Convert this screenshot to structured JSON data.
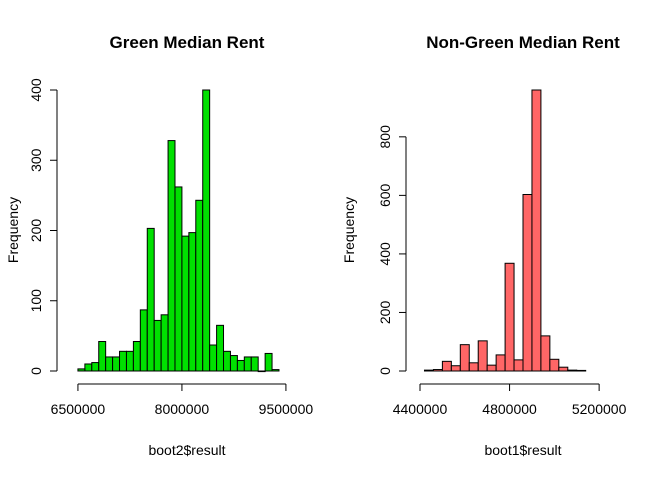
{
  "chart_data": [
    {
      "type": "bar",
      "title": "Green Median Rent",
      "xlabel": "boot2$result",
      "ylabel": "Frequency",
      "bar_color": "#00E000",
      "xlim": [
        6400000,
        9530000
      ],
      "ylim": [
        0,
        400
      ],
      "x_ticks": [
        6500000,
        8000000,
        9500000
      ],
      "x_tick_labels": [
        "6500000",
        "8000000",
        "9500000"
      ],
      "y_ticks": [
        0,
        100,
        200,
        300,
        400
      ],
      "y_tick_labels": [
        "0",
        "100",
        "200",
        "300",
        "400"
      ],
      "bins": [
        {
          "start": 6600000,
          "end": 6700000,
          "count": 10
        },
        {
          "start": 6700000,
          "end": 6800000,
          "count": 12
        },
        {
          "start": 6800000,
          "end": 6900000,
          "count": 42
        },
        {
          "start": 6900000,
          "end": 7000000,
          "count": 20
        },
        {
          "start": 7000000,
          "end": 7100000,
          "count": 20
        },
        {
          "start": 7100000,
          "end": 7200000,
          "count": 28
        },
        {
          "start": 7200000,
          "end": 7300000,
          "count": 28
        },
        {
          "start": 7300000,
          "end": 7400000,
          "count": 42
        },
        {
          "start": 7400000,
          "end": 7500000,
          "count": 87
        },
        {
          "start": 7500000,
          "end": 7600000,
          "count": 203
        },
        {
          "start": 7600000,
          "end": 7700000,
          "count": 72
        },
        {
          "start": 7700000,
          "end": 7800000,
          "count": 80
        },
        {
          "start": 7800000,
          "end": 7900000,
          "count": 328
        },
        {
          "start": 7900000,
          "end": 8000000,
          "count": 262
        },
        {
          "start": 8000000,
          "end": 8100000,
          "count": 192
        },
        {
          "start": 8100000,
          "end": 8200000,
          "count": 197
        },
        {
          "start": 8200000,
          "end": 8300000,
          "count": 243
        },
        {
          "start": 8300000,
          "end": 8400000,
          "count": 400
        },
        {
          "start": 8400000,
          "end": 8500000,
          "count": 37
        },
        {
          "start": 8500000,
          "end": 8600000,
          "count": 65
        },
        {
          "start": 8600000,
          "end": 8700000,
          "count": 28
        },
        {
          "start": 8700000,
          "end": 8800000,
          "count": 22
        },
        {
          "start": 8800000,
          "end": 8900000,
          "count": 15
        },
        {
          "start": 8900000,
          "end": 9000000,
          "count": 20
        },
        {
          "start": 9000000,
          "end": 9100000,
          "count": 20
        },
        {
          "start": 9100000,
          "end": 9200000,
          "count": 0
        },
        {
          "start": 9200000,
          "end": 9300000,
          "count": 25
        },
        {
          "start": 9300000,
          "end": 9400000,
          "count": 2
        }
      ],
      "extra_bins": [
        {
          "start": 6500000,
          "end": 6600000,
          "count": 3
        }
      ]
    },
    {
      "type": "bar",
      "title": "Non-Green Median Rent",
      "xlabel": "boot1$result",
      "ylabel": "Frequency",
      "bar_color": "#FF6666",
      "xlim": [
        4400000,
        5320000
      ],
      "ylim": [
        0,
        960
      ],
      "x_ticks": [
        4400000,
        4800000,
        5200000
      ],
      "x_tick_labels": [
        "4400000",
        "4800000",
        "5200000"
      ],
      "y_ticks": [
        0,
        200,
        400,
        600,
        800
      ],
      "y_tick_labels": [
        "0",
        "200",
        "400",
        "600",
        "800"
      ],
      "bins": [
        {
          "start": 4420000,
          "end": 4460000,
          "count": 3
        },
        {
          "start": 4460000,
          "end": 4500000,
          "count": 5
        },
        {
          "start": 4500000,
          "end": 4540000,
          "count": 33
        },
        {
          "start": 4540000,
          "end": 4580000,
          "count": 18
        },
        {
          "start": 4580000,
          "end": 4620000,
          "count": 90
        },
        {
          "start": 4620000,
          "end": 4660000,
          "count": 28
        },
        {
          "start": 4660000,
          "end": 4700000,
          "count": 103
        },
        {
          "start": 4700000,
          "end": 4740000,
          "count": 20
        },
        {
          "start": 4740000,
          "end": 4780000,
          "count": 55
        },
        {
          "start": 4780000,
          "end": 4820000,
          "count": 368
        },
        {
          "start": 4820000,
          "end": 4860000,
          "count": 38
        },
        {
          "start": 4860000,
          "end": 4900000,
          "count": 603
        },
        {
          "start": 4900000,
          "end": 4940000,
          "count": 960
        },
        {
          "start": 4940000,
          "end": 4980000,
          "count": 120
        },
        {
          "start": 4980000,
          "end": 5020000,
          "count": 40
        },
        {
          "start": 5020000,
          "end": 5060000,
          "count": 13
        },
        {
          "start": 5060000,
          "end": 5100000,
          "count": 3
        },
        {
          "start": 5100000,
          "end": 5140000,
          "count": 2
        }
      ]
    }
  ]
}
